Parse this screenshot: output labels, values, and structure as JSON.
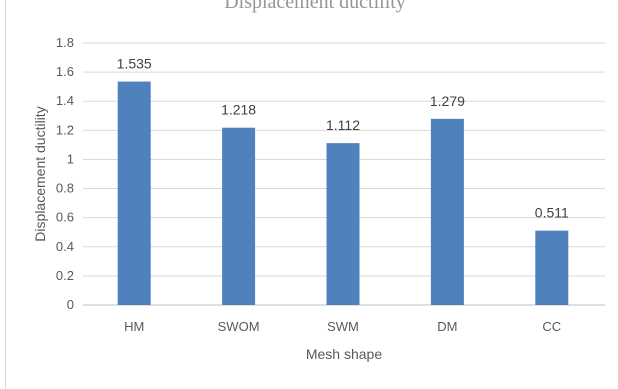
{
  "chart_data": {
    "type": "bar",
    "title": "Displacement ductility",
    "xlabel": "Mesh shape",
    "ylabel": "Displacement ductility",
    "categories": [
      "HM",
      "SWOM",
      "SWM",
      "DM",
      "CC"
    ],
    "values": [
      1.535,
      1.218,
      1.112,
      1.279,
      0.511
    ],
    "data_labels": [
      "1.535",
      "1.218",
      "1.112",
      "1.279",
      "0.511"
    ],
    "ylim": [
      0,
      1.8
    ],
    "yticks": [
      "0",
      "0.2",
      "0.4",
      "0.6",
      "0.8",
      "1",
      "1.2",
      "1.4",
      "1.6",
      "1.8"
    ],
    "grid": true,
    "legend": "none",
    "bar_color": "#4f81bd",
    "grid_color": "#d9d9d9",
    "text_color": "#595959"
  }
}
